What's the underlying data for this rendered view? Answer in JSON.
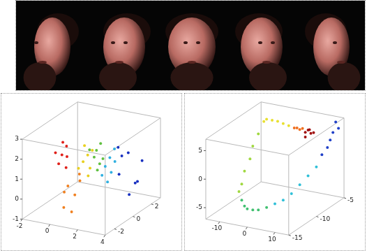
{
  "chart_data": [
    {
      "type": "scatter3d",
      "grid": false,
      "marker": "circle",
      "xlim": [
        -2,
        4
      ],
      "xticks": [
        -2,
        0,
        2,
        4
      ],
      "ylim": [
        -3,
        3
      ],
      "yticks": [
        -2,
        0,
        2
      ],
      "zlim": [
        -1,
        3
      ],
      "zticks": [
        -1,
        0,
        1,
        2,
        3
      ],
      "series": [
        {
          "color": "#e0201a",
          "x": [
            0.2,
            0.4,
            0.1,
            0.3,
            0.0,
            0.5,
            0.2
          ],
          "y": [
            -2,
            -1.8,
            -2.2,
            -1.6,
            -2.4,
            -2.0,
            -1.9
          ],
          "z": [
            2.2,
            2.6,
            1.8,
            2.0,
            2.4,
            1.6,
            2.8
          ]
        },
        {
          "color": "#f08020",
          "x": [
            0.3,
            0.6,
            0.2,
            0.8,
            0.5,
            0.1,
            0.7
          ],
          "y": [
            -1.5,
            -1.2,
            -1.8,
            -1.0,
            -1.4,
            -1.6,
            -0.8
          ],
          "z": [
            0.5,
            0.0,
            -0.5,
            1.0,
            -0.8,
            0.2,
            0.6
          ]
        },
        {
          "color": "#e8d020",
          "x": [
            0.8,
            1.0,
            0.6,
            1.2,
            0.9,
            1.1,
            0.7
          ],
          "y": [
            -0.6,
            -0.4,
            -0.8,
            -0.2,
            0.0,
            -0.5,
            -0.3
          ],
          "z": [
            1.5,
            1.8,
            1.2,
            2.0,
            1.0,
            0.8,
            2.2
          ]
        },
        {
          "color": "#60c040",
          "x": [
            1.2,
            1.4,
            1.0,
            1.5,
            1.3,
            1.1,
            1.6
          ],
          "y": [
            0.0,
            0.3,
            -0.2,
            0.5,
            0.2,
            0.4,
            0.1
          ],
          "z": [
            1.6,
            1.2,
            2.0,
            1.4,
            0.9,
            1.8,
            2.3
          ]
        },
        {
          "color": "#30b0e0",
          "x": [
            1.6,
            1.8,
            1.5,
            2.0,
            1.7,
            1.9,
            2.1
          ],
          "y": [
            0.6,
            0.8,
            0.4,
            1.0,
            0.7,
            1.2,
            0.5
          ],
          "z": [
            1.0,
            1.4,
            0.6,
            1.8,
            0.2,
            1.1,
            0.8
          ]
        },
        {
          "color": "#1830c0",
          "x": [
            2.2,
            2.6,
            3.0,
            2.4,
            2.8,
            3.2,
            2.0,
            3.5
          ],
          "y": [
            1.2,
            1.6,
            2.0,
            0.8,
            1.4,
            2.2,
            1.8,
            1.0
          ],
          "z": [
            0.5,
            1.5,
            0.0,
            2.0,
            -0.5,
            1.0,
            1.2,
            0.3
          ]
        }
      ]
    },
    {
      "type": "scatter3d",
      "grid": false,
      "marker": "circle",
      "xlim": [
        -15,
        15
      ],
      "xticks": [
        -10,
        0,
        10
      ],
      "ylim": [
        -15,
        -5
      ],
      "yticks": [
        -15,
        -10,
        -5
      ],
      "zlim": [
        -7,
        7
      ],
      "zticks": [
        -5,
        0,
        5
      ],
      "series": [
        {
          "color": "#a01010",
          "x": [
            3,
            4,
            5,
            4,
            3.5,
            5
          ],
          "y": [
            -6,
            -6,
            -6,
            -6.5,
            -5.5,
            -5.5
          ],
          "z": [
            4,
            4.5,
            4,
            3.6,
            4.2,
            3.8
          ]
        },
        {
          "color": "#f07020",
          "x": [
            0,
            1,
            2,
            -1
          ],
          "y": [
            -6,
            -6,
            -6,
            -6
          ],
          "z": [
            4.5,
            4.3,
            4.6,
            4.4
          ]
        },
        {
          "color": "#e8e030",
          "x": [
            -3,
            -5,
            -7,
            -9,
            -11,
            -12
          ],
          "y": [
            -6,
            -6,
            -6,
            -6,
            -6,
            -6
          ],
          "z": [
            4.6,
            4.8,
            5,
            5,
            5,
            4.5
          ]
        },
        {
          "color": "#a0d840",
          "x": [
            -12,
            -12,
            -11,
            -11,
            -10,
            -10
          ],
          "y": [
            -7,
            -8,
            -9,
            -10,
            -11,
            -11.5
          ],
          "z": [
            3,
            1.5,
            0,
            -1.5,
            -3,
            -4
          ]
        },
        {
          "color": "#40c070",
          "x": [
            -8,
            -6,
            -4,
            -2,
            0,
            2
          ],
          "y": [
            -12,
            -12.5,
            -13,
            -13,
            -13,
            -12.5
          ],
          "z": [
            -5,
            -5.5,
            -5.5,
            -5.5,
            -5.3,
            -5
          ]
        },
        {
          "color": "#30c0d8",
          "x": [
            4,
            6,
            8,
            9,
            10,
            11
          ],
          "y": [
            -12,
            -11.5,
            -11,
            -10,
            -9,
            -8
          ],
          "z": [
            -4.5,
            -4,
            -3,
            -2,
            -1,
            0
          ]
        },
        {
          "color": "#2040c8",
          "x": [
            11,
            12,
            12,
            12,
            13,
            12
          ],
          "y": [
            -7,
            -6.5,
            -6,
            -5.5,
            -5,
            -5
          ],
          "z": [
            1.5,
            2.5,
            3.5,
            4.5,
            5,
            6
          ]
        }
      ]
    }
  ]
}
